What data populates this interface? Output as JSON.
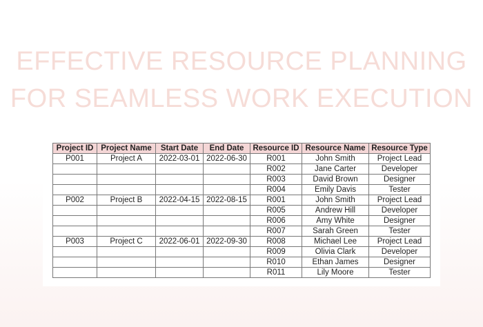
{
  "title": [
    "EFFECTIVE RESOURCE PLANNING",
    "FOR SEAMLESS WORK EXECUTION"
  ],
  "table": {
    "header": [
      "Project ID",
      "Project Name",
      "Start Date",
      "End Date",
      "Resource ID",
      "Resource Name",
      "Resource Type"
    ],
    "projects": [
      {
        "id": "P001",
        "name": "Project A",
        "start": "2022-03-01",
        "end": "2022-06-30",
        "resources": [
          [
            "R001",
            "John Smith",
            "Project Lead"
          ],
          [
            "R002",
            "Jane Carter",
            "Developer"
          ],
          [
            "R003",
            "David Brown",
            "Designer"
          ],
          [
            "R004",
            "Emily Davis",
            "Tester"
          ]
        ]
      },
      {
        "id": "P002",
        "name": "Project B",
        "start": "2022-04-15",
        "end": "2022-08-15",
        "resources": [
          [
            "R001",
            "John Smith",
            "Project Lead"
          ],
          [
            "R005",
            "Andrew Hill",
            "Developer"
          ],
          [
            "R006",
            "Amy White",
            "Designer"
          ],
          [
            "R007",
            "Sarah Green",
            "Tester"
          ]
        ]
      },
      {
        "id": "P003",
        "name": "Project C",
        "start": "2022-06-01",
        "end": "2022-09-30",
        "resources": [
          [
            "R008",
            "Michael Lee",
            "Project Lead"
          ],
          [
            "R009",
            "Olivia Clark",
            "Developer"
          ],
          [
            "R010",
            "Ethan James",
            "Designer"
          ],
          [
            "R011",
            "Lily Moore",
            "Tester"
          ]
        ]
      }
    ]
  }
}
